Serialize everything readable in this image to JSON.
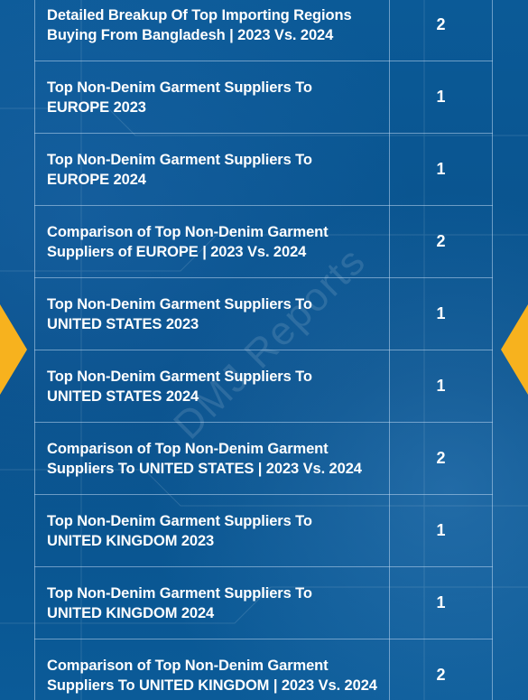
{
  "rows": [
    {
      "title": "Detailed Breakup Of Top Importing Regions\nBuying From Bangladesh  | 2023 Vs. 2024",
      "count": "2"
    },
    {
      "title": "Top Non-Denim Garment Suppliers To\nEUROPE  2023",
      "count": "1"
    },
    {
      "title": "Top Non-Denim Garment Suppliers To\nEUROPE  2024",
      "count": "1"
    },
    {
      "title": "Comparison of Top Non-Denim Garment\nSuppliers of EUROPE  | 2023 Vs. 2024",
      "count": "2"
    },
    {
      "title": "Top Non-Denim Garment Suppliers To\nUNITED STATES 2023",
      "count": "1"
    },
    {
      "title": "Top Non-Denim Garment Suppliers To\nUNITED STATES 2024",
      "count": "1"
    },
    {
      "title": "Comparison of Top Non-Denim Garment\nSuppliers To UNITED STATES   | 2023 Vs. 2024",
      "count": "2"
    },
    {
      "title": "Top Non-Denim Garment Suppliers To\nUNITED KINGDOM 2023",
      "count": "1"
    },
    {
      "title": "Top Non-Denim Garment Suppliers To\nUNITED KINGDOM 2024",
      "count": "1"
    },
    {
      "title": "Comparison of Top Non-Denim Garment\nSuppliers To UNITED KINGDOM  | 2023 Vs. 2024",
      "count": "2"
    }
  ],
  "watermark": "DMJ Reports",
  "colors": {
    "background": "#0a5591",
    "accent": "#f7b21e",
    "text": "#ffffff"
  }
}
